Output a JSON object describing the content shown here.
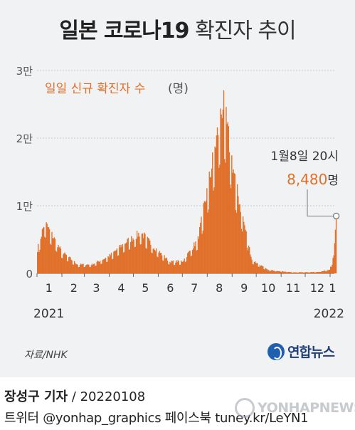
{
  "header": {
    "title_bold": "일본 코로나19",
    "title_light": "확진자 추이"
  },
  "chart_data": {
    "type": "bar",
    "title": "일본 코로나19 확진자 추이",
    "series_label": "일일 신규 확진자 수",
    "unit_label": "(명)",
    "ylim": [
      0,
      30000
    ],
    "y_ticks": [
      {
        "value": 0,
        "label": "0"
      },
      {
        "value": 10000,
        "label": "1만"
      },
      {
        "value": 20000,
        "label": "2만"
      },
      {
        "value": 30000,
        "label": "3만"
      }
    ],
    "x_ticks": [
      "1",
      "2",
      "3",
      "4",
      "5",
      "6",
      "7",
      "8",
      "9",
      "10",
      "11",
      "12",
      "1"
    ],
    "year_labels": [
      "2021",
      "2022"
    ],
    "bar_color": "#e0702a",
    "monthly_profile": [
      {
        "month": "2021-01-01",
        "value": 3500
      },
      {
        "month": "2021-01-10",
        "value": 7500
      },
      {
        "month": "2021-01-15",
        "value": 6500
      },
      {
        "month": "2021-01-31",
        "value": 3200
      },
      {
        "month": "2021-02-20",
        "value": 1300
      },
      {
        "month": "2021-03-10",
        "value": 1300
      },
      {
        "month": "2021-03-31",
        "value": 2500
      },
      {
        "month": "2021-04-20",
        "value": 4500
      },
      {
        "month": "2021-05-10",
        "value": 6000
      },
      {
        "month": "2021-05-25",
        "value": 4000
      },
      {
        "month": "2021-06-15",
        "value": 1700
      },
      {
        "month": "2021-07-01",
        "value": 1800
      },
      {
        "month": "2021-07-20",
        "value": 5000
      },
      {
        "month": "2021-08-05",
        "value": 15000
      },
      {
        "month": "2021-08-20",
        "value": 25000
      },
      {
        "month": "2021-09-05",
        "value": 13000
      },
      {
        "month": "2021-09-25",
        "value": 2000
      },
      {
        "month": "2021-10-15",
        "value": 500
      },
      {
        "month": "2021-11-15",
        "value": 150
      },
      {
        "month": "2021-12-15",
        "value": 200
      },
      {
        "month": "2021-12-31",
        "value": 500
      },
      {
        "month": "2022-01-05",
        "value": 2600
      },
      {
        "month": "2022-01-08",
        "value": 8480
      }
    ],
    "annotation": {
      "date_label": "1월8일 20시",
      "value_label": "8,480",
      "unit": "명",
      "value": 8480
    }
  },
  "footer": {
    "source": "자료/NHK",
    "logo_text": "연합뉴스",
    "reporter": "장성구 기자",
    "date_suffix": " / 20220108",
    "social": "트위터 @yonhap_graphics  페이스북 tuney.kr/LeYN1",
    "watermark": "YONHAPNEWS"
  }
}
